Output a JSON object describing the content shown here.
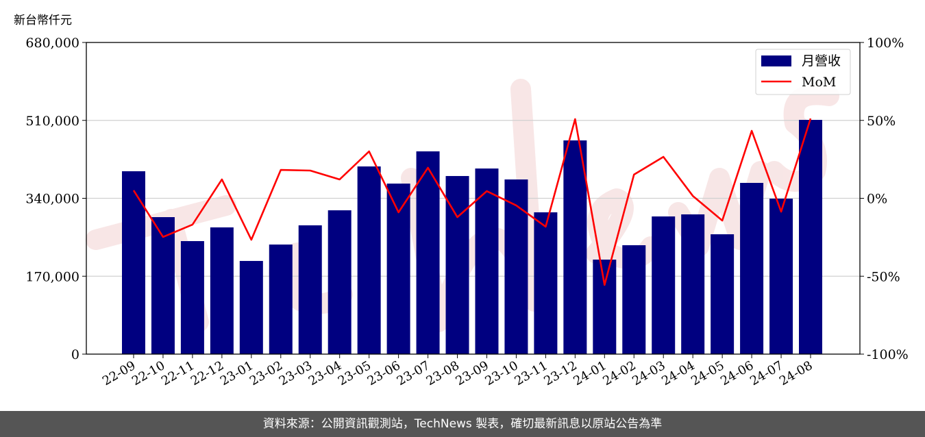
{
  "chart_data": {
    "type": "bar+line",
    "ylabel_left": "新台幣仟元",
    "categories": [
      "22-09",
      "22-10",
      "22-11",
      "22-12",
      "23-01",
      "23-02",
      "23-03",
      "23-04",
      "23-05",
      "23-06",
      "23-07",
      "23-08",
      "23-09",
      "23-10",
      "23-11",
      "23-12",
      "24-01",
      "24-02",
      "24-03",
      "24-04",
      "24-05",
      "24-06",
      "24-07",
      "24-08"
    ],
    "series": [
      {
        "name": "月營收",
        "type": "bar",
        "axis": "left",
        "color": "#000080",
        "values": [
          399000,
          298900,
          246600,
          276500,
          203300,
          239100,
          281000,
          313800,
          409500,
          372100,
          442400,
          388600,
          405000,
          381100,
          309400,
          466300,
          206200,
          237600,
          300400,
          304900,
          261500,
          373600,
          339200,
          511100
        ]
      },
      {
        "name": "MoM",
        "type": "line",
        "axis": "right",
        "unit": "%",
        "color": "#ff0000",
        "values": [
          5.1,
          -24.8,
          -16.9,
          12.1,
          -26.6,
          18.2,
          17.8,
          12.1,
          30.1,
          -9.0,
          19.6,
          -12.1,
          4.6,
          -4.6,
          -18.2,
          50.8,
          -55.6,
          15.2,
          26.6,
          1.5,
          -14.3,
          43.3,
          -8.6,
          51.2
        ]
      }
    ],
    "left_axis": {
      "range": [
        0,
        680000
      ],
      "ticks": [
        "0",
        "170,000",
        "340,000",
        "510,000",
        "680,000"
      ],
      "tick_values": [
        0,
        170000,
        340000,
        510000,
        680000
      ]
    },
    "right_axis": {
      "range": [
        -100,
        100
      ],
      "ticks": [
        "-100%",
        "-50%",
        "0%",
        "50%",
        "100%"
      ],
      "tick_values": [
        -100,
        -50,
        0,
        50,
        100
      ]
    },
    "grid": "horizontal",
    "legend": "top-right",
    "watermark": "TechNews"
  },
  "footer": {
    "source": "資料來源：公開資訊觀測站，TechNews 製表，確切最新訊息以原站公告為準"
  }
}
